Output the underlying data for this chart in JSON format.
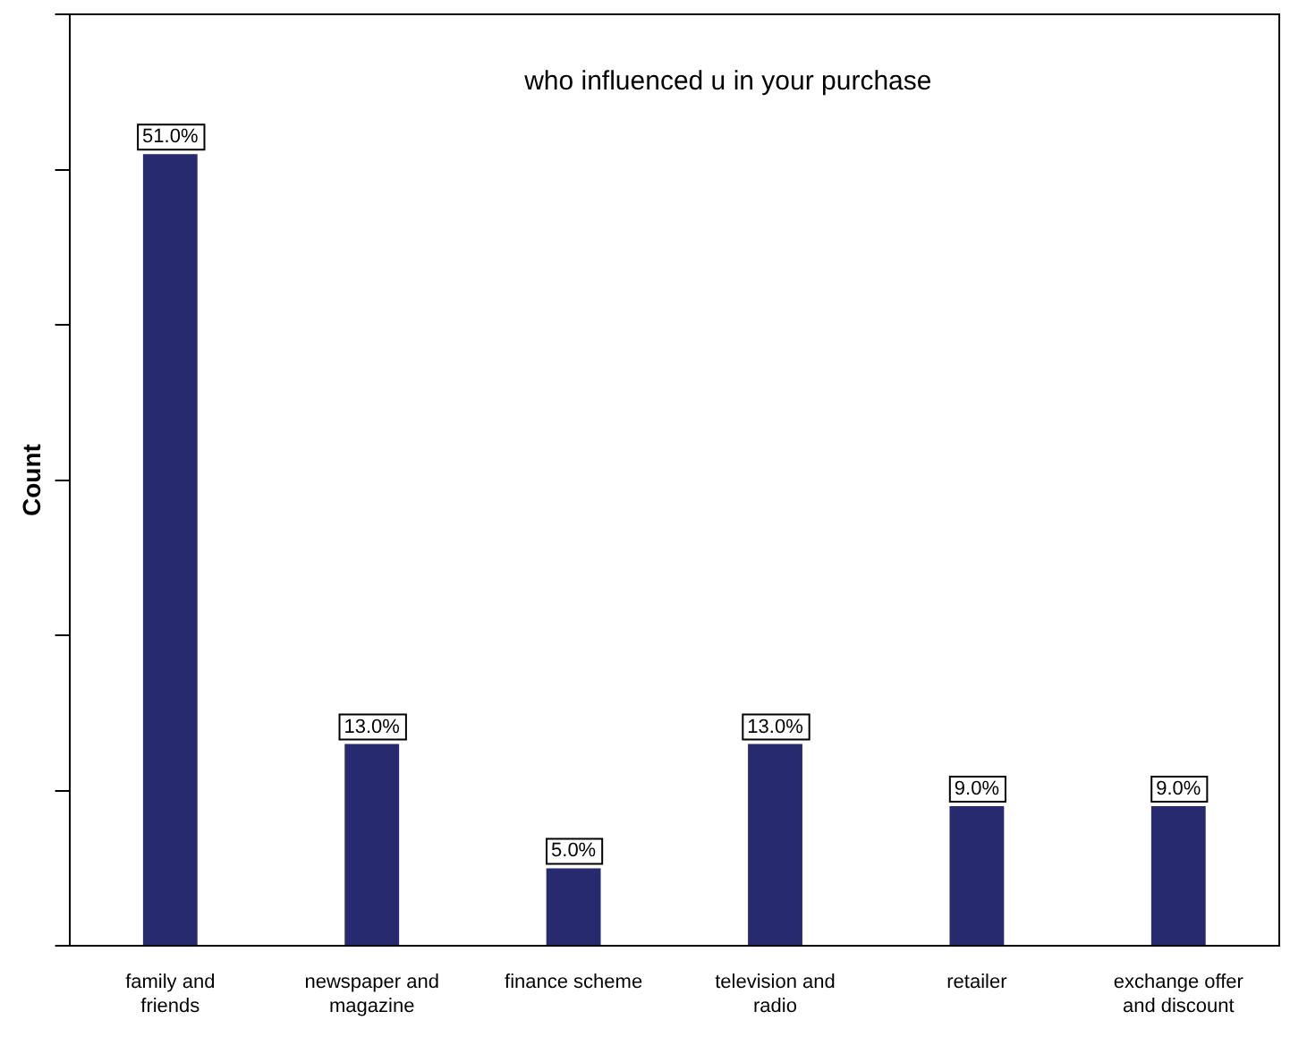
{
  "chart_data": {
    "type": "bar",
    "title": "who influenced u in your purchase",
    "ylabel": "Count",
    "categories": [
      "family and friends",
      "newspaper and magazine",
      "finance scheme",
      "television and radio",
      "retailer",
      "exchange offer and discount"
    ],
    "values": [
      51,
      13,
      5,
      13,
      9,
      9
    ],
    "value_labels": [
      "51.0%",
      "13.0%",
      "5.0%",
      "13.0%",
      "9.0%",
      "9.0%"
    ],
    "color": "#272a6e",
    "grid": false,
    "legend": false
  }
}
